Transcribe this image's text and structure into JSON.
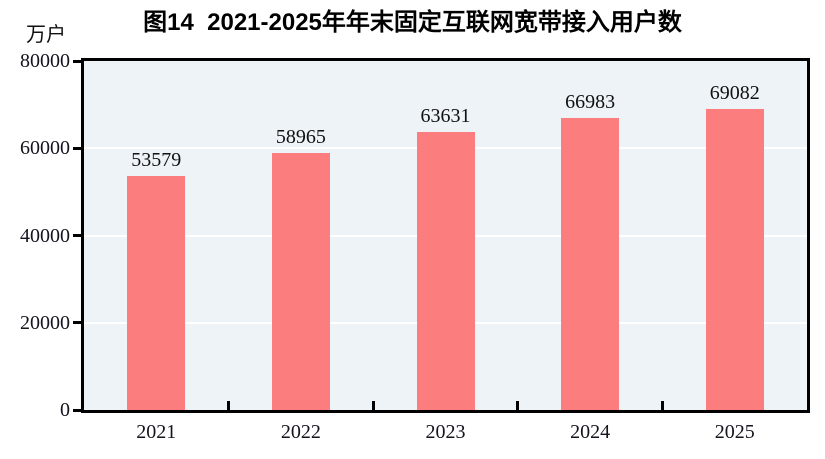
{
  "chart_data": {
    "type": "bar",
    "title": "图14  2021-2025年年末固定互联网宽带接入用户数",
    "unit_label": "万户",
    "categories": [
      "2021",
      "2022",
      "2023",
      "2024",
      "2025"
    ],
    "values": [
      53579,
      58965,
      63631,
      66983,
      69082
    ],
    "xlabel": "",
    "ylabel": "万户",
    "ylim": [
      0,
      80000
    ],
    "yticks": [
      0,
      20000,
      40000,
      60000,
      80000
    ],
    "gridline_levels": [
      20000,
      40000,
      60000
    ],
    "grid": true,
    "legend": "none",
    "data_labels": true
  },
  "colors": {
    "bar": "#fc7d7d",
    "plot_background": "#eef3f8",
    "gridline": "#ffffff",
    "axis": "#000000",
    "title_text": "#000000",
    "tick_text": "#14141e",
    "page_background": "#ffffff"
  }
}
